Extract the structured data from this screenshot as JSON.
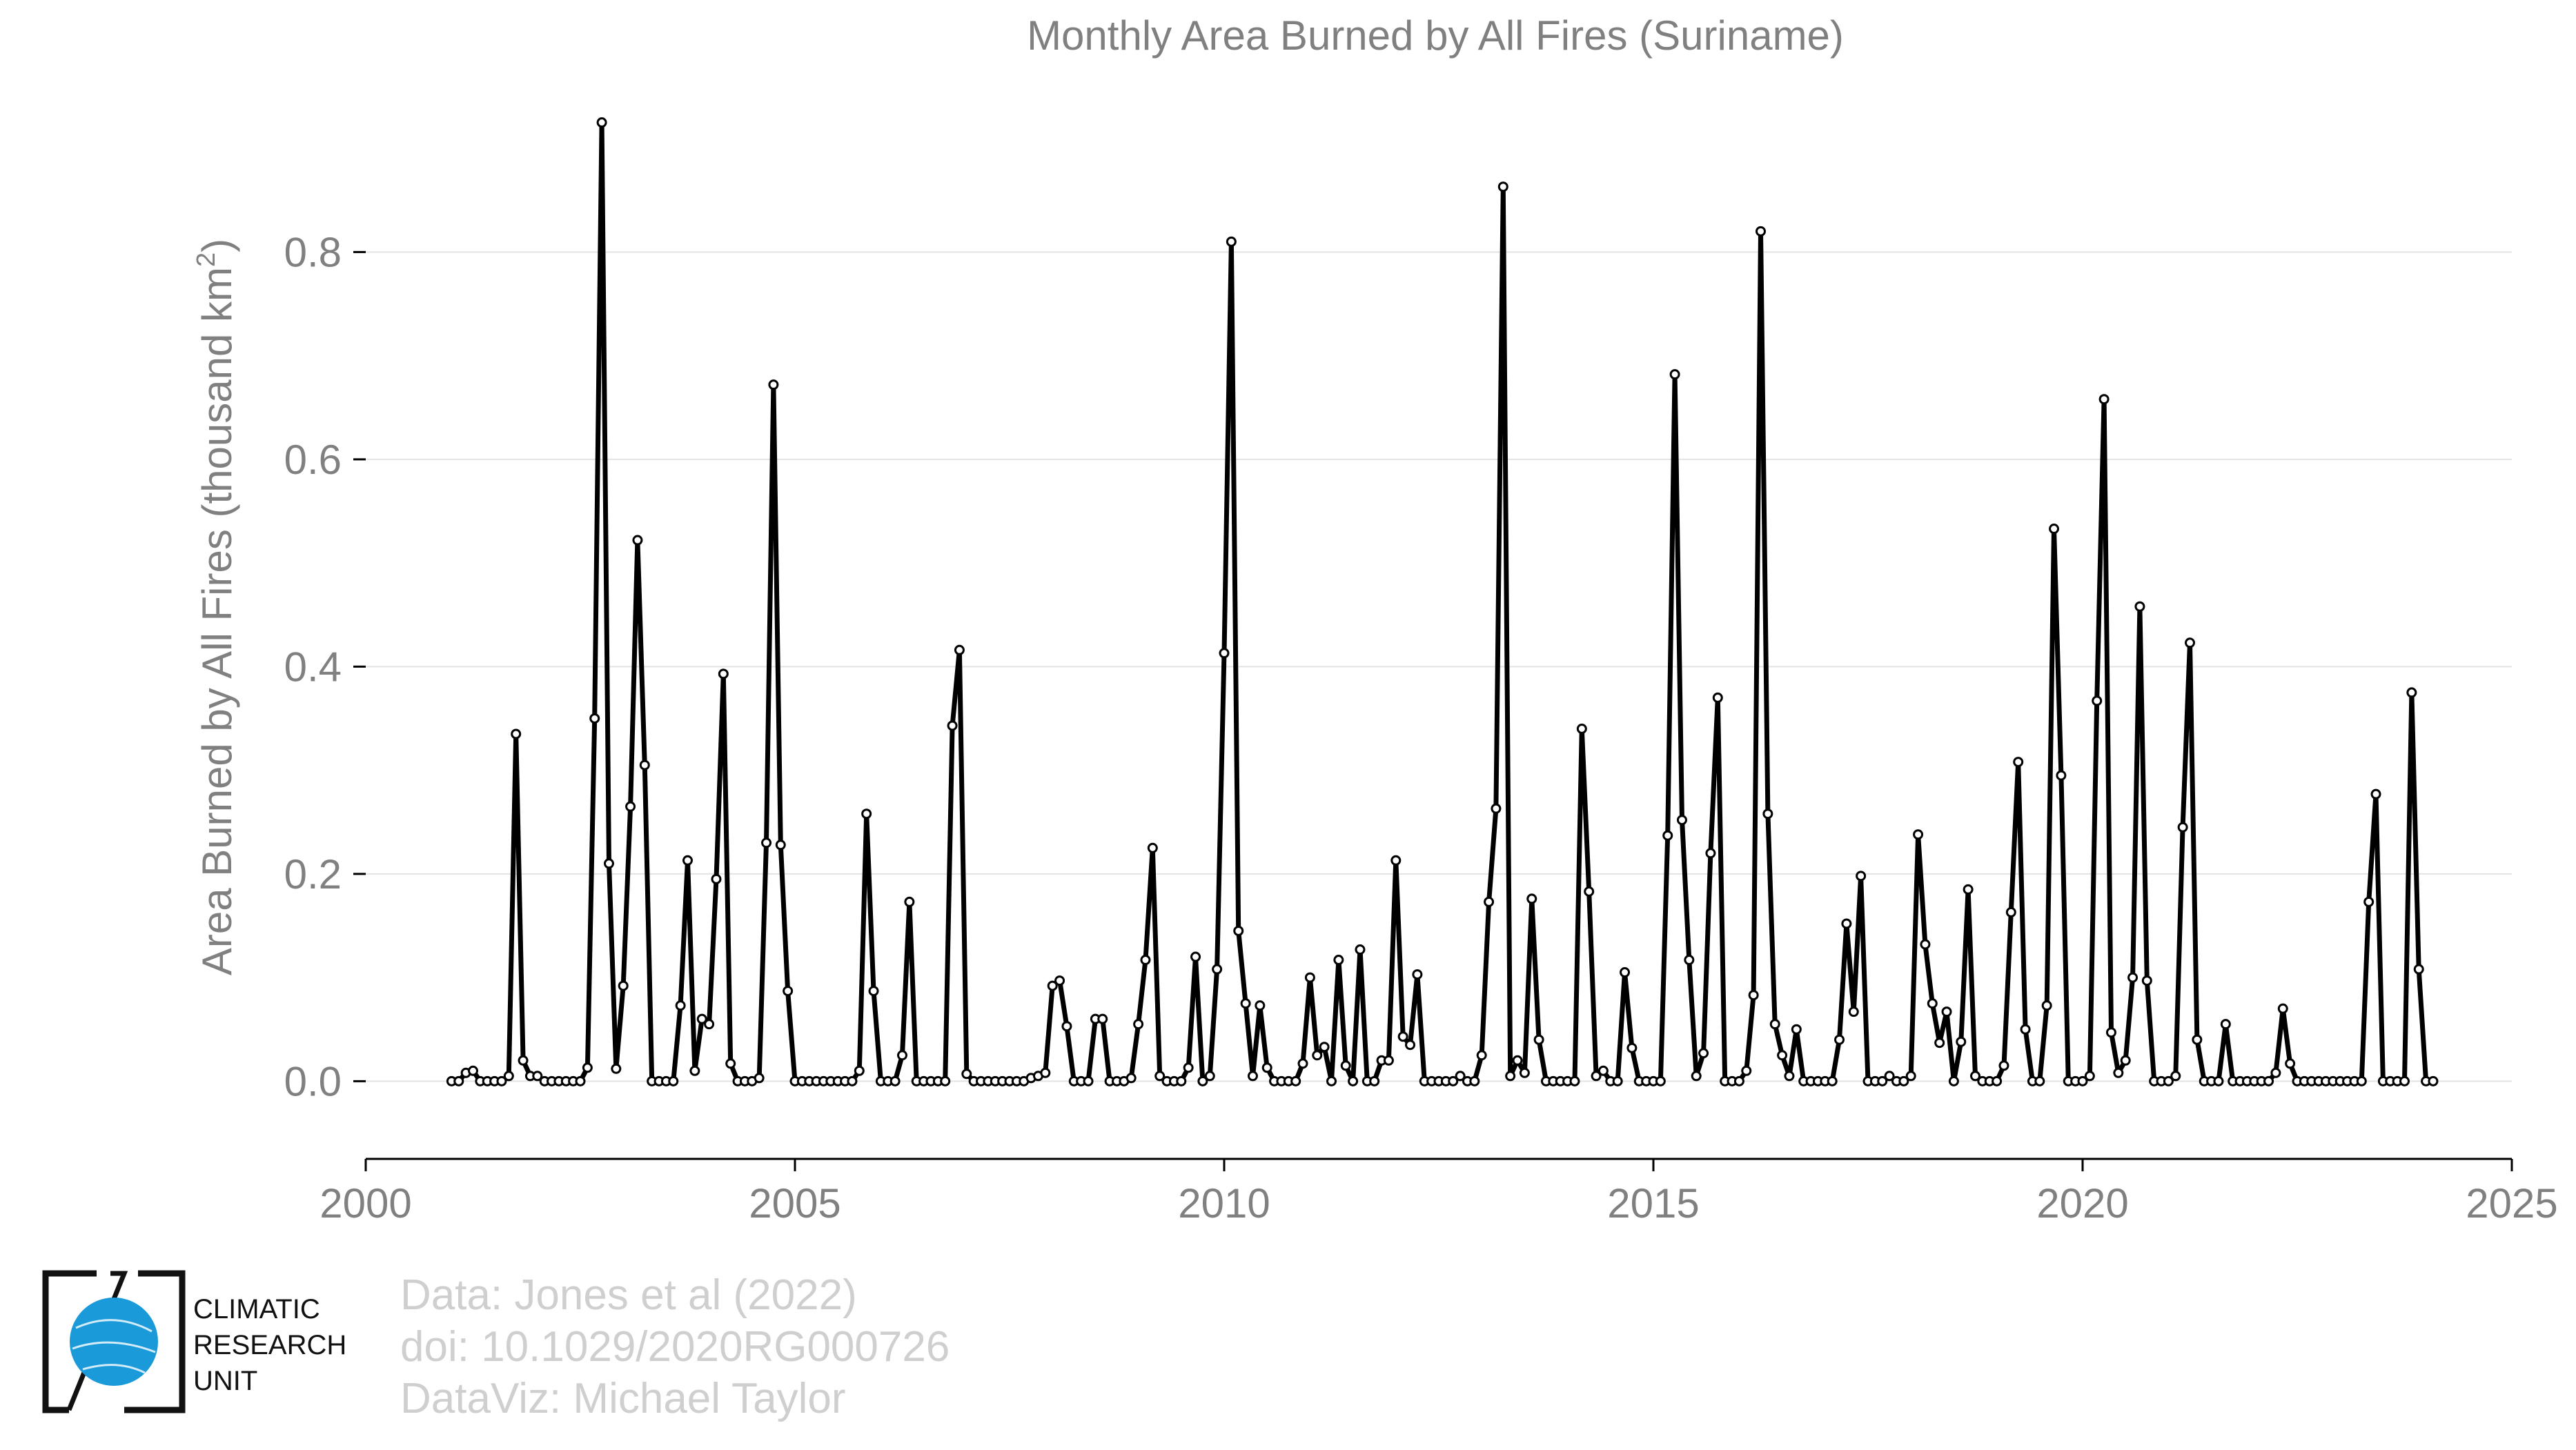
{
  "chart_data": {
    "type": "line",
    "title": "Monthly Area Burned by All Fires (Suriname)",
    "ylabel_main": "Area Burned by All Fires (thousand km",
    "ylabel_sup": "2",
    "ylabel_end": ")",
    "xlabel": "",
    "xlim": [
      2000,
      2025
    ],
    "ylim": [
      -0.075,
      0.95
    ],
    "xticks": [
      2000,
      2005,
      2010,
      2015,
      2020,
      2025
    ],
    "yticks": [
      0.0,
      0.2,
      0.4,
      0.6,
      0.8
    ],
    "ytick_labels": [
      "0.0",
      "0.2",
      "0.4",
      "0.6",
      "0.8"
    ],
    "grid": "horizontal",
    "start_year": 2001,
    "values": [
      0.0,
      0.0,
      0.008,
      0.01,
      0.0,
      0.0,
      0.0,
      0.0,
      0.005,
      0.335,
      0.02,
      0.005,
      0.005,
      0.0,
      0.0,
      0.0,
      0.0,
      0.0,
      0.0,
      0.013,
      0.35,
      0.925,
      0.21,
      0.012,
      0.092,
      0.265,
      0.522,
      0.305,
      0.0,
      0.0,
      0.0,
      0.0,
      0.073,
      0.213,
      0.01,
      0.06,
      0.055,
      0.195,
      0.393,
      0.017,
      0.0,
      0.0,
      0.0,
      0.003,
      0.23,
      0.672,
      0.228,
      0.087,
      0.0,
      0.0,
      0.0,
      0.0,
      0.0,
      0.0,
      0.0,
      0.0,
      0.0,
      0.01,
      0.258,
      0.087,
      0.0,
      0.0,
      0.0,
      0.025,
      0.173,
      0.0,
      0.0,
      0.0,
      0.0,
      0.0,
      0.343,
      0.416,
      0.007,
      0.0,
      0.0,
      0.0,
      0.0,
      0.0,
      0.0,
      0.0,
      0.0,
      0.003,
      0.005,
      0.008,
      0.092,
      0.097,
      0.053,
      0.0,
      0.0,
      0.0,
      0.06,
      0.06,
      0.0,
      0.0,
      0.0,
      0.003,
      0.055,
      0.117,
      0.225,
      0.005,
      0.0,
      0.0,
      0.0,
      0.013,
      0.12,
      0.0,
      0.005,
      0.108,
      0.413,
      0.81,
      0.145,
      0.075,
      0.005,
      0.073,
      0.013,
      0.0,
      0.0,
      0.0,
      0.0,
      0.017,
      0.1,
      0.025,
      0.033,
      0.0,
      0.117,
      0.015,
      0.0,
      0.127,
      0.0,
      0.0,
      0.02,
      0.02,
      0.213,
      0.043,
      0.035,
      0.103,
      0.0,
      0.0,
      0.0,
      0.0,
      0.0,
      0.005,
      0.0,
      0.0,
      0.025,
      0.173,
      0.263,
      0.863,
      0.005,
      0.02,
      0.008,
      0.176,
      0.04,
      0.0,
      0.0,
      0.0,
      0.0,
      0.0,
      0.34,
      0.183,
      0.005,
      0.01,
      0.0,
      0.0,
      0.105,
      0.032,
      0.0,
      0.0,
      0.0,
      0.0,
      0.237,
      0.682,
      0.252,
      0.117,
      0.005,
      0.027,
      0.22,
      0.37,
      0.0,
      0.0,
      0.0,
      0.01,
      0.083,
      0.82,
      0.258,
      0.055,
      0.025,
      0.005,
      0.05,
      0.0,
      0.0,
      0.0,
      0.0,
      0.0,
      0.04,
      0.152,
      0.067,
      0.198,
      0.0,
      0.0,
      0.0,
      0.005,
      0.0,
      0.0,
      0.005,
      0.238,
      0.132,
      0.075,
      0.037,
      0.067,
      0.0,
      0.038,
      0.185,
      0.005,
      0.0,
      0.0,
      0.0,
      0.015,
      0.163,
      0.308,
      0.05,
      0.0,
      0.0,
      0.073,
      0.533,
      0.295,
      0.0,
      0.0,
      0.0,
      0.005,
      0.367,
      0.658,
      0.047,
      0.008,
      0.02,
      0.1,
      0.458,
      0.097,
      0.0,
      0.0,
      0.0,
      0.005,
      0.245,
      0.423,
      0.04,
      0.0,
      0.0,
      0.0,
      0.055,
      0.0,
      0.0,
      0.0,
      0.0,
      0.0,
      0.0,
      0.008,
      0.07,
      0.017,
      0.0,
      0.0,
      0.0,
      0.0,
      0.0,
      0.0,
      0.0,
      0.0,
      0.0,
      0.0,
      0.173,
      0.277,
      0.0,
      0.0,
      0.0,
      0.0,
      0.375,
      0.108,
      0.0,
      0.0
    ]
  },
  "credits": {
    "line1": "Data: Jones et al (2022)",
    "line2": "doi: 10.1029/2020RG000726",
    "line3": "DataViz: Michael Taylor"
  },
  "logo": {
    "line1": "CLIMATIC",
    "line2": "RESEARCH",
    "line3": "UNIT"
  },
  "colors": {
    "series": "#000000",
    "axis_text": "#808080",
    "grid": "#e3e3e3",
    "credits": "#cfcfcf",
    "logo_globe": "#1a9ad9"
  }
}
